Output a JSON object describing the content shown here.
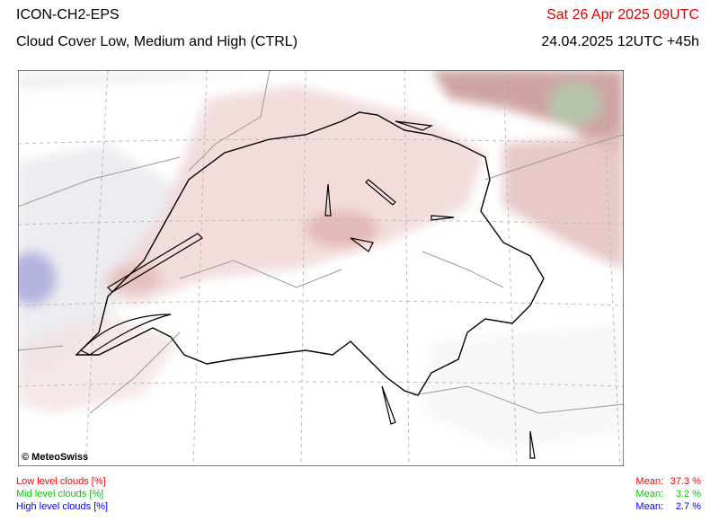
{
  "header": {
    "model": "ICON-CH2-EPS",
    "title": "Cloud Cover Low, Medium and High (CTRL)",
    "valid_time": "Sat 26 Apr 2025 09UTC",
    "run": "24.04.2025 12UTC +45h"
  },
  "map": {
    "credit": "© MeteoSwiss"
  },
  "legend": [
    {
      "label": "Low level clouds [%]",
      "mean_label": "Mean:",
      "mean": "37.3 %",
      "color": "#ff0000"
    },
    {
      "label": "Mid level clouds [%]",
      "mean_label": "Mean:",
      "mean": "3.2 %",
      "color": "#00cc00"
    },
    {
      "label": "High level clouds [%]",
      "mean_label": "Mean:",
      "mean": "2.7 %",
      "color": "#0000ff"
    }
  ]
}
